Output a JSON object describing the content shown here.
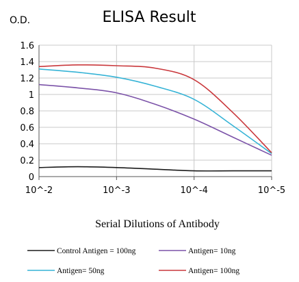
{
  "chart_data": {
    "type": "line",
    "title": "ELISA Result",
    "ylabel": "O.D.",
    "xlabel": "Serial Dilutions of Antibody",
    "x": [
      "10^-2",
      "10^-3",
      "10^-4",
      "10^-5"
    ],
    "x_log10": [
      -2,
      -3,
      -4,
      -5
    ],
    "ylim": [
      0,
      1.6
    ],
    "yticks": [
      "0",
      "0.2",
      "0.4",
      "0.6",
      "0.8",
      "1",
      "1.2",
      "1.4",
      "1.6"
    ],
    "grid": true,
    "legend_placement": "bottom",
    "series": [
      {
        "name": "Control Antigen = 100ng",
        "color": "#1a1a1a",
        "x": [
          -2,
          -2.5,
          -3,
          -3.5,
          -4,
          -4.5,
          -5
        ],
        "values": [
          0.11,
          0.12,
          0.11,
          0.09,
          0.07,
          0.07,
          0.07
        ]
      },
      {
        "name": "Antigen= 10ng",
        "color": "#7b52a8",
        "x": [
          -2,
          -2.5,
          -3,
          -3.5,
          -4,
          -4.5,
          -5
        ],
        "values": [
          1.12,
          1.08,
          1.02,
          0.88,
          0.7,
          0.48,
          0.26
        ]
      },
      {
        "name": "Antigen= 50ng",
        "color": "#35b3d6",
        "x": [
          -2,
          -2.5,
          -3,
          -3.5,
          -4,
          -4.5,
          -5
        ],
        "values": [
          1.31,
          1.27,
          1.21,
          1.1,
          0.94,
          0.62,
          0.28
        ]
      },
      {
        "name": "Antigen= 100ng",
        "color": "#c9373b",
        "x": [
          -2,
          -2.5,
          -3,
          -3.5,
          -4,
          -4.5,
          -5
        ],
        "values": [
          1.34,
          1.36,
          1.35,
          1.32,
          1.18,
          0.78,
          0.29
        ]
      }
    ]
  }
}
